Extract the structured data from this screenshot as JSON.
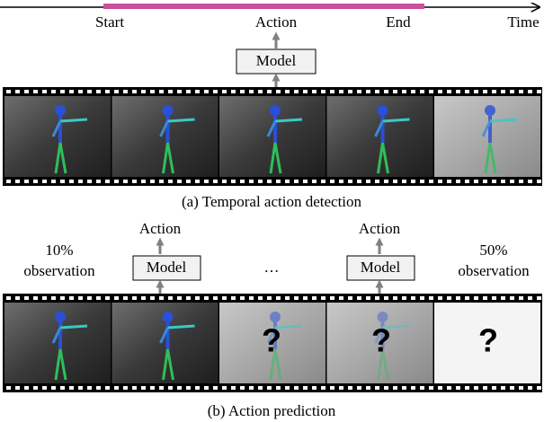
{
  "timeline": {
    "start": "Start",
    "action": "Action",
    "end": "End",
    "time": "Time"
  },
  "detection": {
    "model": "Model",
    "caption": "(a) Temporal action detection"
  },
  "prediction": {
    "left": {
      "percent": "10%",
      "text": "observation",
      "action": "Action",
      "model": "Model"
    },
    "ellipsis": "…",
    "right": {
      "percent": "50%",
      "text": "observation",
      "action": "Action",
      "model": "Model"
    },
    "unknown": [
      "?",
      "?",
      "?"
    ],
    "caption": "(b) Action prediction"
  }
}
